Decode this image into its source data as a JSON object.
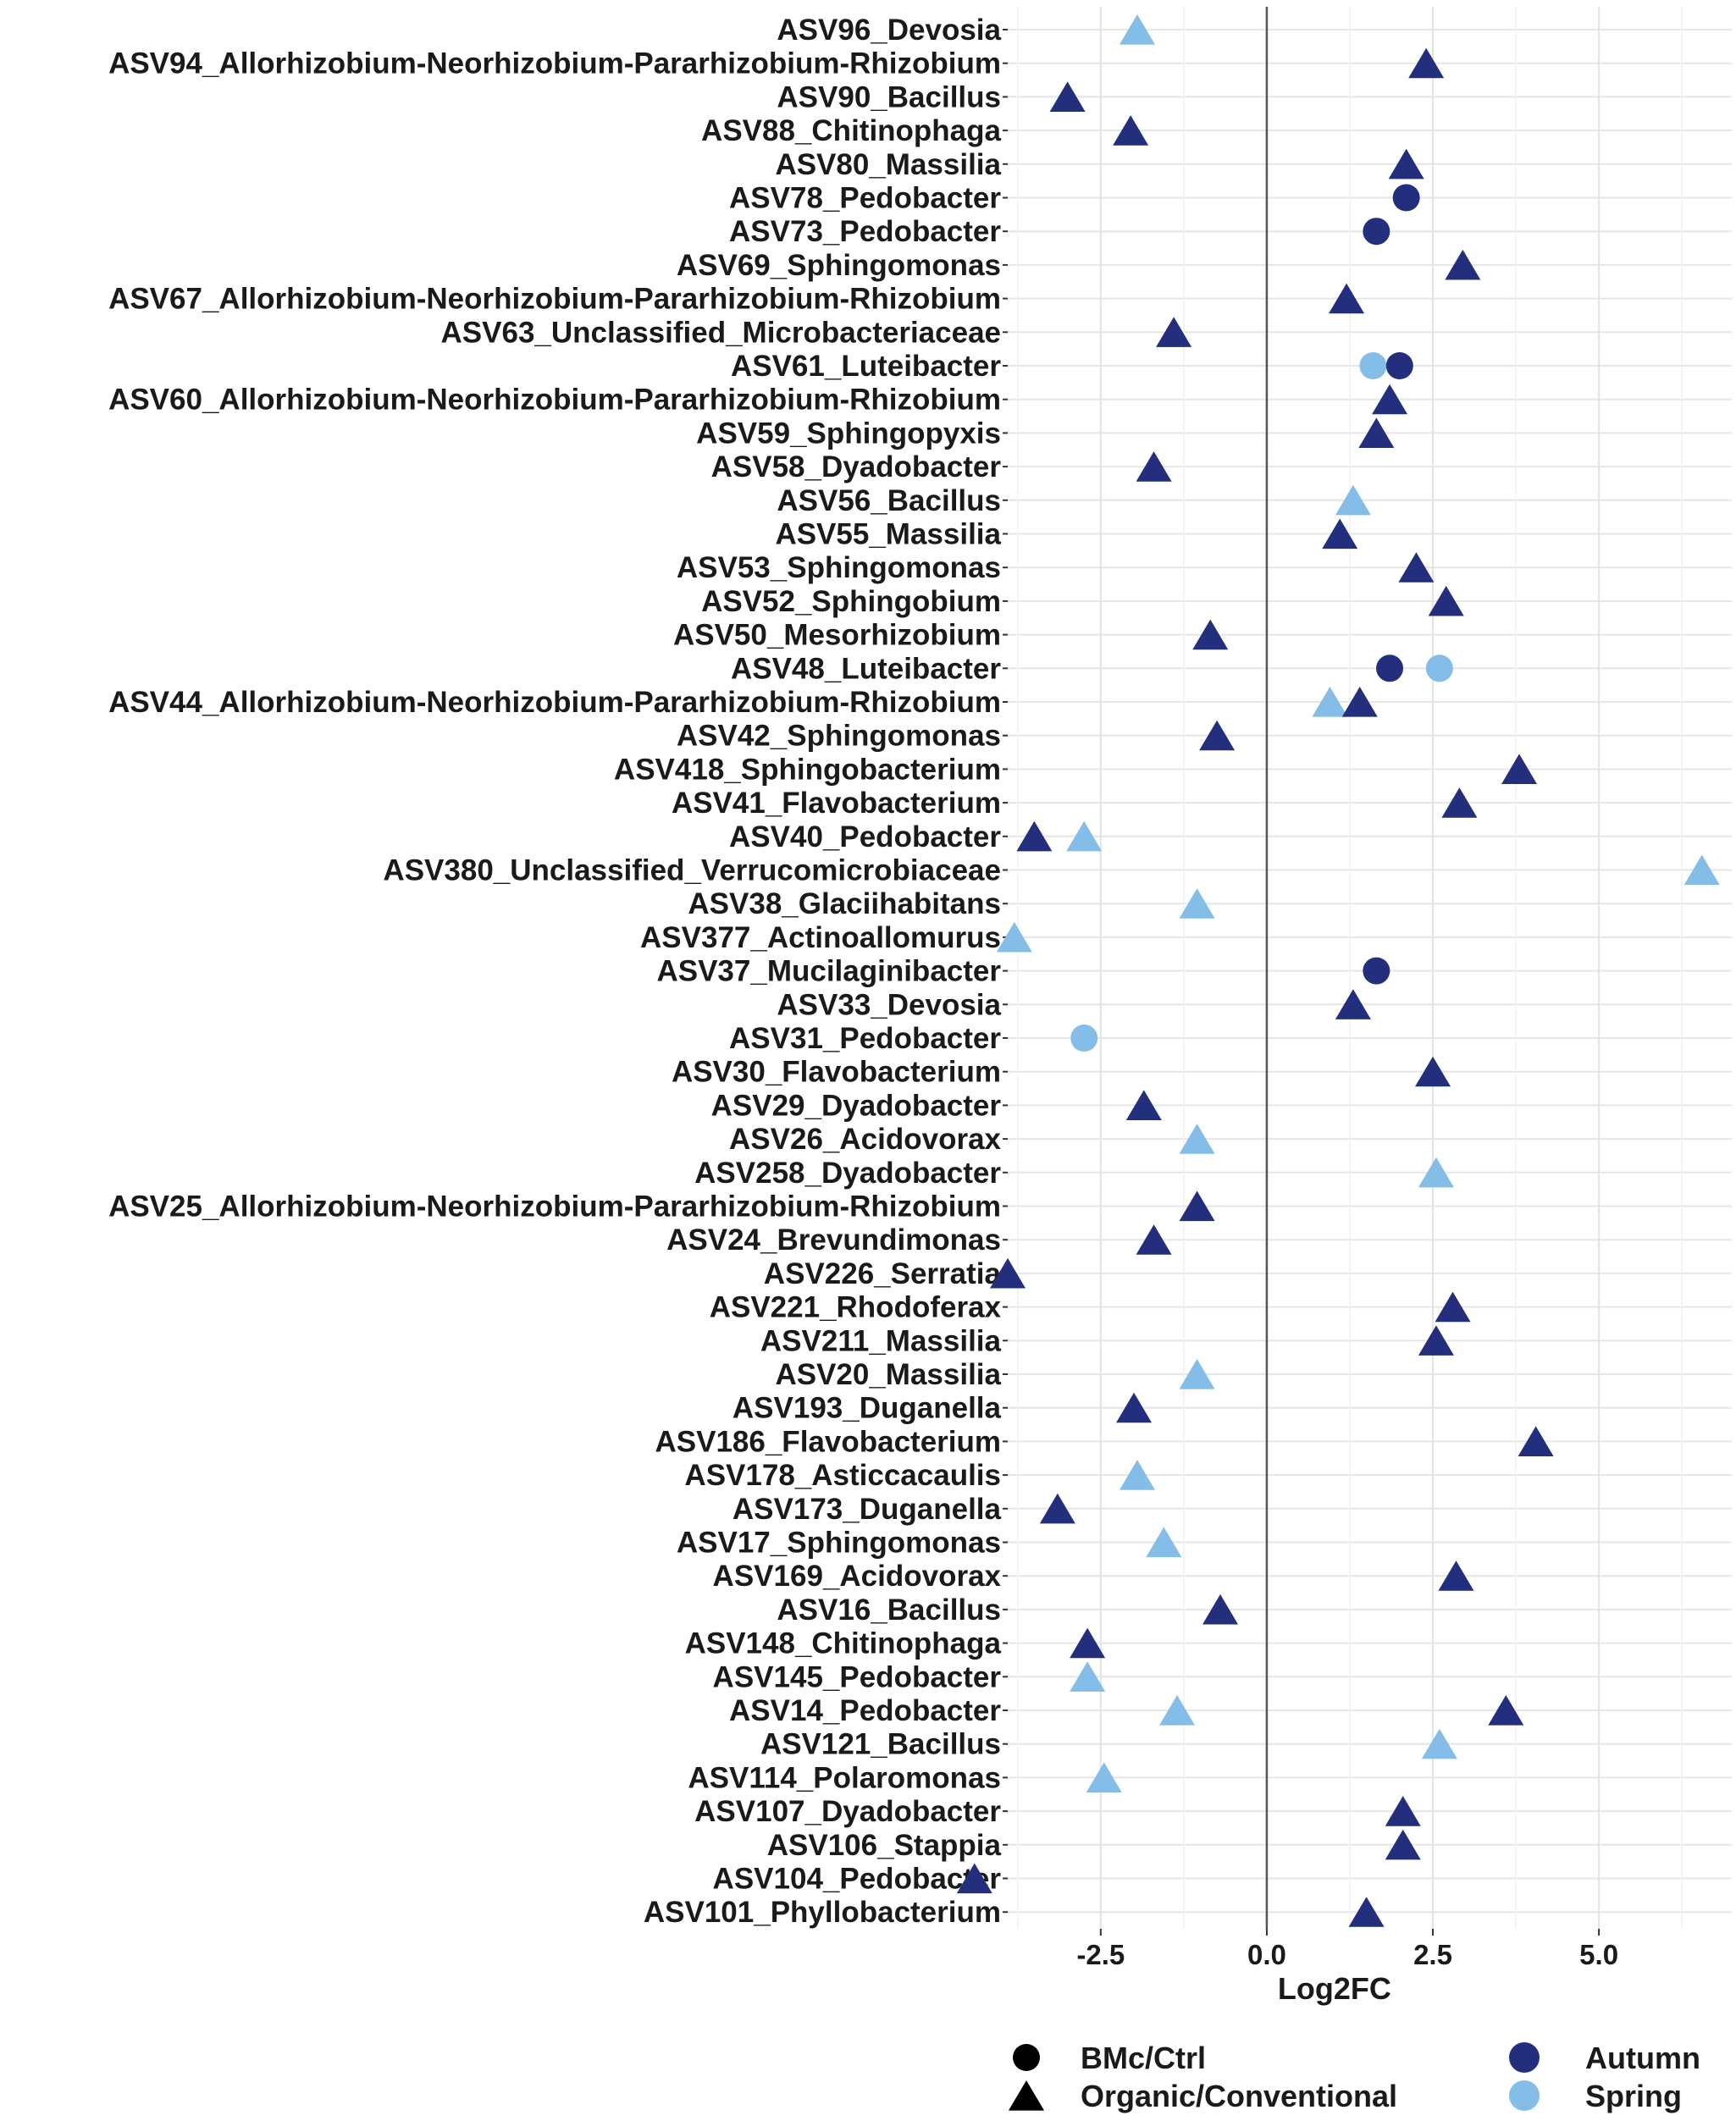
{
  "chart_data": {
    "type": "scatter",
    "title": "",
    "xlabel": "Log2FC",
    "ylabel": "",
    "xlim": [
      -3.9,
      7.0
    ],
    "xticks": [
      "-2.5",
      "0.0",
      "2.5",
      "5.0"
    ],
    "xtick_values": [
      -2.5,
      0.0,
      2.5,
      5.0
    ],
    "grid": true,
    "legend_position": "bottom",
    "shape_legend": [
      {
        "key": "bmc",
        "label": "BMc/Ctrl",
        "shape": "circle"
      },
      {
        "key": "org",
        "label": "Organic/Conventional",
        "shape": "triangle"
      }
    ],
    "color_legend": [
      {
        "key": "Autumn",
        "label": "Autumn",
        "color": "#232f7c"
      },
      {
        "key": "Spring",
        "label": "Spring",
        "color": "#85bde9"
      }
    ],
    "categories": [
      "ASV96_Devosia",
      "ASV94_Allorhizobium-Neorhizobium-Pararhizobium-Rhizobium",
      "ASV90_Bacillus",
      "ASV88_Chitinophaga",
      "ASV80_Massilia",
      "ASV78_Pedobacter",
      "ASV73_Pedobacter",
      "ASV69_Sphingomonas",
      "ASV67_Allorhizobium-Neorhizobium-Pararhizobium-Rhizobium",
      "ASV63_Unclassified_Microbacteriaceae",
      "ASV61_Luteibacter",
      "ASV60_Allorhizobium-Neorhizobium-Pararhizobium-Rhizobium",
      "ASV59_Sphingopyxis",
      "ASV58_Dyadobacter",
      "ASV56_Bacillus",
      "ASV55_Massilia",
      "ASV53_Sphingomonas",
      "ASV52_Sphingobium",
      "ASV50_Mesorhizobium",
      "ASV48_Luteibacter",
      "ASV44_Allorhizobium-Neorhizobium-Pararhizobium-Rhizobium",
      "ASV42_Sphingomonas",
      "ASV418_Sphingobacterium",
      "ASV41_Flavobacterium",
      "ASV40_Pedobacter",
      "ASV380_Unclassified_Verrucomicrobiaceae",
      "ASV38_Glaciihabitans",
      "ASV377_Actinoallomurus",
      "ASV37_Mucilaginibacter",
      "ASV33_Devosia",
      "ASV31_Pedobacter",
      "ASV30_Flavobacterium",
      "ASV29_Dyadobacter",
      "ASV26_Acidovorax",
      "ASV258_Dyadobacter",
      "ASV25_Allorhizobium-Neorhizobium-Pararhizobium-Rhizobium",
      "ASV24_Brevundimonas",
      "ASV226_Serratia",
      "ASV221_Rhodoferax",
      "ASV211_Massilia",
      "ASV20_Massilia",
      "ASV193_Duganella",
      "ASV186_Flavobacterium",
      "ASV178_Asticcacaulis",
      "ASV173_Duganella",
      "ASV17_Sphingomonas",
      "ASV169_Acidovorax",
      "ASV16_Bacillus",
      "ASV148_Chitinophaga",
      "ASV145_Pedobacter",
      "ASV14_Pedobacter",
      "ASV121_Bacillus",
      "ASV114_Polaromonas",
      "ASV107_Dyadobacter",
      "ASV106_Stappia",
      "ASV104_Pedobacter",
      "ASV101_Phyllobacterium"
    ],
    "points": [
      {
        "row": 0,
        "x": -1.95,
        "season": "Spring",
        "shape": "triangle"
      },
      {
        "row": 1,
        "x": 2.4,
        "season": "Autumn",
        "shape": "triangle"
      },
      {
        "row": 2,
        "x": -3.0,
        "season": "Autumn",
        "shape": "triangle"
      },
      {
        "row": 3,
        "x": -2.05,
        "season": "Autumn",
        "shape": "triangle"
      },
      {
        "row": 4,
        "x": 2.1,
        "season": "Autumn",
        "shape": "triangle"
      },
      {
        "row": 5,
        "x": 2.1,
        "season": "Autumn",
        "shape": "circle"
      },
      {
        "row": 6,
        "x": 1.65,
        "season": "Autumn",
        "shape": "circle"
      },
      {
        "row": 7,
        "x": 2.95,
        "season": "Autumn",
        "shape": "triangle"
      },
      {
        "row": 8,
        "x": 1.2,
        "season": "Autumn",
        "shape": "triangle"
      },
      {
        "row": 9,
        "x": -1.4,
        "season": "Autumn",
        "shape": "triangle"
      },
      {
        "row": 10,
        "x": 1.6,
        "season": "Spring",
        "shape": "circle"
      },
      {
        "row": 10,
        "x": 2.0,
        "season": "Autumn",
        "shape": "circle"
      },
      {
        "row": 11,
        "x": 1.85,
        "season": "Autumn",
        "shape": "triangle"
      },
      {
        "row": 12,
        "x": 1.65,
        "season": "Autumn",
        "shape": "triangle"
      },
      {
        "row": 13,
        "x": -1.7,
        "season": "Autumn",
        "shape": "triangle"
      },
      {
        "row": 14,
        "x": 1.3,
        "season": "Spring",
        "shape": "triangle"
      },
      {
        "row": 15,
        "x": 1.1,
        "season": "Autumn",
        "shape": "triangle"
      },
      {
        "row": 16,
        "x": 2.25,
        "season": "Autumn",
        "shape": "triangle"
      },
      {
        "row": 17,
        "x": 2.7,
        "season": "Autumn",
        "shape": "triangle"
      },
      {
        "row": 18,
        "x": -0.85,
        "season": "Autumn",
        "shape": "triangle"
      },
      {
        "row": 19,
        "x": 1.85,
        "season": "Autumn",
        "shape": "circle"
      },
      {
        "row": 19,
        "x": 2.6,
        "season": "Spring",
        "shape": "circle"
      },
      {
        "row": 20,
        "x": 0.95,
        "season": "Spring",
        "shape": "triangle"
      },
      {
        "row": 20,
        "x": 1.4,
        "season": "Autumn",
        "shape": "triangle"
      },
      {
        "row": 21,
        "x": -0.75,
        "season": "Autumn",
        "shape": "triangle"
      },
      {
        "row": 22,
        "x": 3.8,
        "season": "Autumn",
        "shape": "triangle"
      },
      {
        "row": 23,
        "x": 2.9,
        "season": "Autumn",
        "shape": "triangle"
      },
      {
        "row": 24,
        "x": -3.5,
        "season": "Autumn",
        "shape": "triangle"
      },
      {
        "row": 24,
        "x": -2.75,
        "season": "Spring",
        "shape": "triangle"
      },
      {
        "row": 25,
        "x": 6.55,
        "season": "Spring",
        "shape": "triangle"
      },
      {
        "row": 26,
        "x": -1.05,
        "season": "Spring",
        "shape": "triangle"
      },
      {
        "row": 27,
        "x": -3.8,
        "season": "Spring",
        "shape": "triangle"
      },
      {
        "row": 28,
        "x": 1.65,
        "season": "Autumn",
        "shape": "circle"
      },
      {
        "row": 29,
        "x": 1.3,
        "season": "Autumn",
        "shape": "triangle"
      },
      {
        "row": 30,
        "x": -2.75,
        "season": "Spring",
        "shape": "circle"
      },
      {
        "row": 31,
        "x": 2.5,
        "season": "Autumn",
        "shape": "triangle"
      },
      {
        "row": 32,
        "x": -1.85,
        "season": "Autumn",
        "shape": "triangle"
      },
      {
        "row": 33,
        "x": -1.05,
        "season": "Spring",
        "shape": "triangle"
      },
      {
        "row": 34,
        "x": 2.55,
        "season": "Spring",
        "shape": "triangle"
      },
      {
        "row": 35,
        "x": -1.05,
        "season": "Autumn",
        "shape": "triangle"
      },
      {
        "row": 36,
        "x": -1.7,
        "season": "Autumn",
        "shape": "triangle"
      },
      {
        "row": 37,
        "x": -3.9,
        "season": "Autumn",
        "shape": "triangle"
      },
      {
        "row": 38,
        "x": 2.8,
        "season": "Autumn",
        "shape": "triangle"
      },
      {
        "row": 39,
        "x": 2.55,
        "season": "Autumn",
        "shape": "triangle"
      },
      {
        "row": 40,
        "x": -1.05,
        "season": "Spring",
        "shape": "triangle"
      },
      {
        "row": 41,
        "x": -2.0,
        "season": "Autumn",
        "shape": "triangle"
      },
      {
        "row": 42,
        "x": 4.05,
        "season": "Autumn",
        "shape": "triangle"
      },
      {
        "row": 43,
        "x": -1.95,
        "season": "Spring",
        "shape": "triangle"
      },
      {
        "row": 44,
        "x": -3.15,
        "season": "Autumn",
        "shape": "triangle"
      },
      {
        "row": 45,
        "x": -1.55,
        "season": "Spring",
        "shape": "triangle"
      },
      {
        "row": 46,
        "x": 2.85,
        "season": "Autumn",
        "shape": "triangle"
      },
      {
        "row": 47,
        "x": -0.7,
        "season": "Autumn",
        "shape": "triangle"
      },
      {
        "row": 48,
        "x": -2.7,
        "season": "Autumn",
        "shape": "triangle"
      },
      {
        "row": 49,
        "x": -2.7,
        "season": "Spring",
        "shape": "triangle"
      },
      {
        "row": 50,
        "x": -1.35,
        "season": "Spring",
        "shape": "triangle"
      },
      {
        "row": 50,
        "x": 3.6,
        "season": "Autumn",
        "shape": "triangle"
      },
      {
        "row": 51,
        "x": 2.6,
        "season": "Spring",
        "shape": "triangle"
      },
      {
        "row": 52,
        "x": -2.45,
        "season": "Spring",
        "shape": "triangle"
      },
      {
        "row": 53,
        "x": 2.05,
        "season": "Autumn",
        "shape": "triangle"
      },
      {
        "row": 54,
        "x": 2.05,
        "season": "Autumn",
        "shape": "triangle"
      },
      {
        "row": 55,
        "x": -4.4,
        "season": "Autumn",
        "shape": "triangle"
      },
      {
        "row": 56,
        "x": 1.5,
        "season": "Autumn",
        "shape": "triangle"
      }
    ]
  }
}
